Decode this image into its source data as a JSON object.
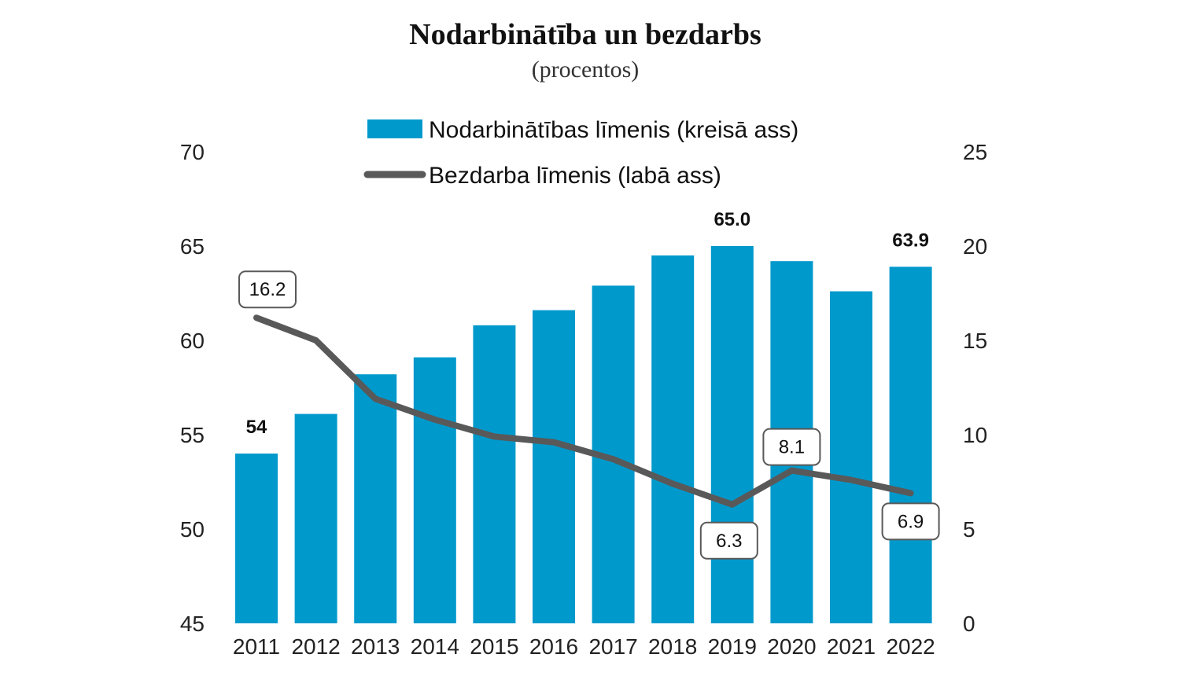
{
  "chart_data": {
    "type": "bar+line",
    "title": "Nodarbinātība un bezdarbs",
    "subtitle": "(procentos)",
    "categories": [
      "2011",
      "2012",
      "2013",
      "2014",
      "2015",
      "2016",
      "2017",
      "2018",
      "2019",
      "2020",
      "2021",
      "2022"
    ],
    "series": [
      {
        "name": "Nodarbinātības līmenis (kreisā ass)",
        "type": "bar",
        "axis": "left",
        "color": "#0099CC",
        "values": [
          54.0,
          56.1,
          58.2,
          59.1,
          60.8,
          61.6,
          62.9,
          64.5,
          65.0,
          64.2,
          62.6,
          63.9
        ]
      },
      {
        "name": "Bezdarba līmenis (labā ass)",
        "type": "line",
        "axis": "right",
        "color": "#595959",
        "values": [
          16.2,
          15.0,
          11.9,
          10.8,
          9.9,
          9.6,
          8.7,
          7.4,
          6.3,
          8.1,
          7.6,
          6.9
        ]
      }
    ],
    "bar_labels": [
      {
        "index": 0,
        "text": "54"
      },
      {
        "index": 8,
        "text": "65.0"
      },
      {
        "index": 11,
        "text": "63.9"
      }
    ],
    "line_labels": [
      {
        "index": 0,
        "text": "16.2"
      },
      {
        "index": 8,
        "text": "6.3"
      },
      {
        "index": 9,
        "text": "8.1"
      },
      {
        "index": 11,
        "text": "6.9"
      }
    ],
    "y_left": {
      "min": 45,
      "max": 70,
      "ticks": [
        "45",
        "50",
        "55",
        "60",
        "65",
        "70"
      ]
    },
    "y_right": {
      "min": 0,
      "max": 25,
      "ticks": [
        "0",
        "5",
        "10",
        "15",
        "20",
        "25"
      ]
    },
    "legend": {
      "position": "top-center",
      "items": [
        "Nodarbinātības līmenis (kreisā ass)",
        "Bezdarba līmenis (labā ass)"
      ]
    },
    "grid": false
  }
}
